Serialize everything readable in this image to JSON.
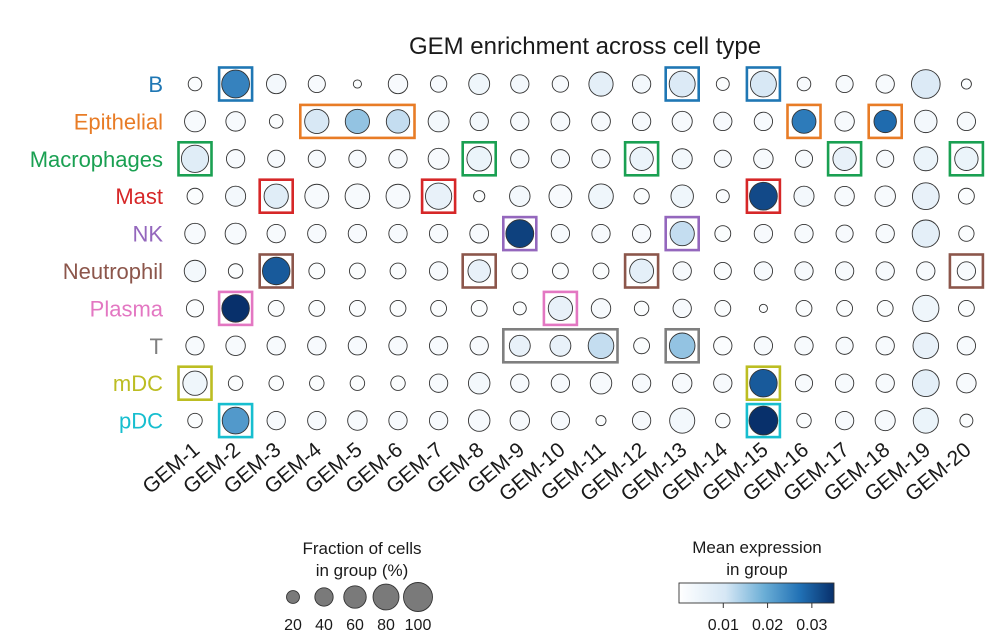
{
  "chart_data": {
    "type": "dotplot",
    "title": "GEM enrichment across cell type",
    "rows": [
      {
        "name": "B",
        "color": "#1f77b4"
      },
      {
        "name": "Epithelial",
        "color": "#e87c26"
      },
      {
        "name": "Macrophages",
        "color": "#1aa052"
      },
      {
        "name": "Mast",
        "color": "#d62728"
      },
      {
        "name": "NK",
        "color": "#9467bd"
      },
      {
        "name": "Neutrophil",
        "color": "#8c564b"
      },
      {
        "name": "Plasma",
        "color": "#e377c2"
      },
      {
        "name": "T",
        "color": "#7f7f7f"
      },
      {
        "name": "mDC",
        "color": "#bcbd22"
      },
      {
        "name": "pDC",
        "color": "#17becf"
      }
    ],
    "columns": [
      "GEM-1",
      "GEM-2",
      "GEM-3",
      "GEM-4",
      "GEM-5",
      "GEM-6",
      "GEM-7",
      "GEM-8",
      "GEM-9",
      "GEM-10",
      "GEM-11",
      "GEM-12",
      "GEM-13",
      "GEM-14",
      "GEM-15",
      "GEM-16",
      "GEM-17",
      "GEM-18",
      "GEM-19",
      "GEM-20"
    ],
    "fraction_pct": [
      [
        22,
        92,
        45,
        35,
        8,
        45,
        32,
        52,
        40,
        32,
        70,
        40,
        80,
        20,
        80,
        22,
        35,
        40,
        98,
        12
      ],
      [
        52,
        45,
        22,
        70,
        70,
        65,
        52,
        40,
        40,
        42,
        42,
        40,
        48,
        40,
        40,
        68,
        45,
        60,
        60,
        40
      ],
      [
        88,
        40,
        35,
        35,
        35,
        40,
        52,
        72,
        40,
        40,
        40,
        65,
        48,
        35,
        45,
        35,
        65,
        35,
        68,
        65
      ],
      [
        30,
        48,
        70,
        68,
        72,
        68,
        82,
        15,
        50,
        62,
        72,
        28,
        60,
        20,
        92,
        48,
        45,
        50,
        85,
        30
      ],
      [
        50,
        52,
        40,
        40,
        40,
        40,
        40,
        42,
        92,
        40,
        40,
        40,
        70,
        30,
        40,
        40,
        35,
        40,
        88,
        28
      ],
      [
        55,
        25,
        90,
        30,
        30,
        30,
        40,
        60,
        30,
        30,
        30,
        68,
        40,
        35,
        40,
        40,
        40,
        40,
        40,
        40
      ],
      [
        35,
        90,
        30,
        30,
        30,
        30,
        30,
        30,
        20,
        70,
        45,
        25,
        40,
        30,
        8,
        30,
        30,
        30,
        82,
        30
      ],
      [
        40,
        45,
        40,
        40,
        40,
        40,
        40,
        40,
        52,
        52,
        78,
        30,
        78,
        40,
        40,
        40,
        35,
        40,
        78,
        40
      ],
      [
        70,
        25,
        25,
        25,
        25,
        25,
        40,
        55,
        40,
        40,
        55,
        40,
        45,
        40,
        90,
        35,
        40,
        40,
        85,
        45
      ],
      [
        25,
        85,
        40,
        40,
        45,
        40,
        40,
        55,
        45,
        40,
        12,
        40,
        75,
        25,
        98,
        25,
        40,
        48,
        75,
        20
      ]
    ],
    "mean_expression": [
      [
        0.001,
        0.025,
        0.003,
        0.002,
        0.001,
        0.002,
        0.002,
        0.004,
        0.003,
        0.002,
        0.007,
        0.003,
        0.009,
        0.001,
        0.01,
        0.002,
        0.002,
        0.002,
        0.009,
        0.001
      ],
      [
        0.002,
        0.002,
        0.001,
        0.01,
        0.016,
        0.012,
        0.003,
        0.003,
        0.002,
        0.002,
        0.002,
        0.002,
        0.002,
        0.002,
        0.002,
        0.026,
        0.002,
        0.028,
        0.003,
        0.002
      ],
      [
        0.008,
        0.002,
        0.002,
        0.002,
        0.002,
        0.002,
        0.002,
        0.005,
        0.002,
        0.002,
        0.002,
        0.005,
        0.003,
        0.002,
        0.002,
        0.002,
        0.006,
        0.002,
        0.005,
        0.005
      ],
      [
        0.001,
        0.003,
        0.008,
        0.002,
        0.002,
        0.002,
        0.006,
        0.001,
        0.003,
        0.002,
        0.004,
        0.001,
        0.004,
        0.001,
        0.032,
        0.003,
        0.002,
        0.002,
        0.006,
        0.001
      ],
      [
        0.002,
        0.002,
        0.002,
        0.002,
        0.002,
        0.002,
        0.002,
        0.002,
        0.033,
        0.002,
        0.002,
        0.002,
        0.012,
        0.001,
        0.002,
        0.002,
        0.002,
        0.002,
        0.007,
        0.001
      ],
      [
        0.003,
        0.001,
        0.03,
        0.001,
        0.001,
        0.001,
        0.002,
        0.006,
        0.001,
        0.001,
        0.001,
        0.007,
        0.002,
        0.001,
        0.002,
        0.002,
        0.002,
        0.002,
        0.002,
        0.002
      ],
      [
        0.001,
        0.036,
        0.001,
        0.001,
        0.001,
        0.001,
        0.001,
        0.001,
        0.001,
        0.006,
        0.002,
        0.001,
        0.002,
        0.001,
        0.001,
        0.001,
        0.001,
        0.001,
        0.004,
        0.001
      ],
      [
        0.002,
        0.002,
        0.002,
        0.002,
        0.002,
        0.002,
        0.002,
        0.002,
        0.006,
        0.006,
        0.012,
        0.001,
        0.016,
        0.001,
        0.002,
        0.002,
        0.002,
        0.002,
        0.006,
        0.002
      ],
      [
        0.004,
        0.001,
        0.001,
        0.001,
        0.001,
        0.001,
        0.002,
        0.003,
        0.002,
        0.002,
        0.002,
        0.002,
        0.002,
        0.002,
        0.03,
        0.002,
        0.002,
        0.002,
        0.007,
        0.002
      ],
      [
        0.001,
        0.022,
        0.002,
        0.002,
        0.002,
        0.002,
        0.002,
        0.002,
        0.002,
        0.002,
        0.001,
        0.002,
        0.003,
        0.001,
        0.048,
        0.001,
        0.002,
        0.002,
        0.005,
        0.001
      ]
    ],
    "highlight_boxes": [
      {
        "row": 0,
        "cols": [
          1
        ]
      },
      {
        "row": 0,
        "cols": [
          12
        ]
      },
      {
        "row": 0,
        "cols": [
          14
        ]
      },
      {
        "row": 1,
        "cols": [
          3,
          5
        ]
      },
      {
        "row": 1,
        "cols": [
          15
        ]
      },
      {
        "row": 1,
        "cols": [
          17
        ]
      },
      {
        "row": 2,
        "cols": [
          0
        ]
      },
      {
        "row": 2,
        "cols": [
          7
        ]
      },
      {
        "row": 2,
        "cols": [
          11
        ]
      },
      {
        "row": 2,
        "cols": [
          16
        ]
      },
      {
        "row": 2,
        "cols": [
          19
        ]
      },
      {
        "row": 3,
        "cols": [
          2
        ]
      },
      {
        "row": 3,
        "cols": [
          6
        ]
      },
      {
        "row": 3,
        "cols": [
          14
        ]
      },
      {
        "row": 4,
        "cols": [
          8
        ]
      },
      {
        "row": 4,
        "cols": [
          12
        ]
      },
      {
        "row": 5,
        "cols": [
          2
        ]
      },
      {
        "row": 5,
        "cols": [
          7
        ]
      },
      {
        "row": 5,
        "cols": [
          11
        ]
      },
      {
        "row": 5,
        "cols": [
          19
        ]
      },
      {
        "row": 6,
        "cols": [
          1
        ]
      },
      {
        "row": 6,
        "cols": [
          9
        ]
      },
      {
        "row": 7,
        "cols": [
          8,
          10
        ]
      },
      {
        "row": 7,
        "cols": [
          12
        ]
      },
      {
        "row": 8,
        "cols": [
          0
        ]
      },
      {
        "row": 8,
        "cols": [
          14
        ]
      },
      {
        "row": 9,
        "cols": [
          1
        ]
      },
      {
        "row": 9,
        "cols": [
          14
        ]
      }
    ],
    "size_legend": {
      "title_lines": [
        "Fraction of cells",
        "in group (%)"
      ],
      "values": [
        20,
        40,
        60,
        80,
        100
      ]
    },
    "color_legend": {
      "title_lines": [
        "Mean expression",
        "in group"
      ],
      "ticks": [
        0.01,
        0.02,
        0.03
      ],
      "range": [
        0,
        0.035
      ],
      "colors": [
        "#ffffff",
        "#d6e7f5",
        "#6baed6",
        "#2171b5",
        "#08306b"
      ]
    }
  }
}
